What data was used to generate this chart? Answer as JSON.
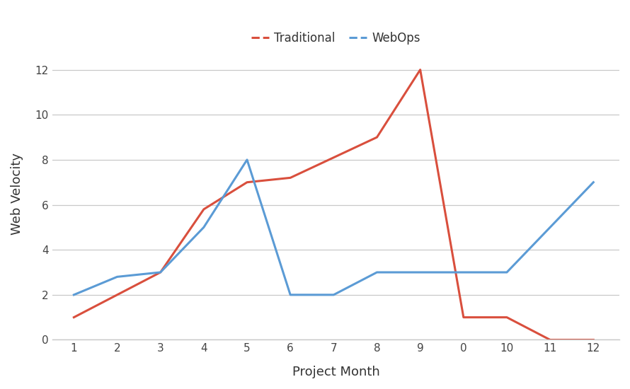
{
  "x_labels": [
    "1",
    "2",
    "3",
    "4",
    "5",
    "6",
    "7",
    "8",
    "9",
    "0",
    "10",
    "11",
    "12"
  ],
  "x_positions": [
    0,
    1,
    2,
    3,
    4,
    5,
    6,
    7,
    8,
    9,
    10,
    11,
    12
  ],
  "traditional_x": [
    0,
    1,
    2,
    3,
    4,
    5,
    6,
    7,
    8,
    9,
    10,
    11,
    12
  ],
  "traditional_y": [
    1,
    2,
    3,
    5.8,
    7,
    7.2,
    8.1,
    9,
    12,
    1,
    1,
    0,
    0
  ],
  "webops_x": [
    0,
    1,
    2,
    3,
    4,
    5,
    6,
    7,
    8,
    9,
    10,
    11,
    12
  ],
  "webops_y": [
    2,
    2.8,
    3,
    5,
    8,
    2,
    2,
    3,
    3,
    3,
    3,
    5,
    7
  ],
  "traditional_color": "#d94f3d",
  "webops_color": "#5b9bd5",
  "traditional_label": "Traditional",
  "webops_label": "WebOps",
  "xlabel": "Project Month",
  "ylabel": "Web Velocity",
  "ylim": [
    0,
    13
  ],
  "yticks": [
    0,
    2,
    4,
    6,
    8,
    10,
    12
  ],
  "background_color": "#ffffff",
  "grid_color": "#c8c8c8",
  "line_width": 2.2,
  "legend_fontsize": 12,
  "axis_label_fontsize": 13,
  "tick_fontsize": 11
}
